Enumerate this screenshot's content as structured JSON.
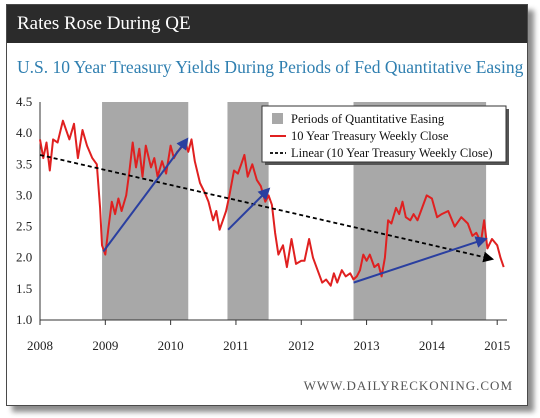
{
  "header": {
    "title": "Rates Rose During QE"
  },
  "source": "WWW.DAILYRECKONING.COM",
  "colors": {
    "header_bg": "#2b2b2b",
    "subtitle": "#2f7fb0",
    "qe_band": "#a8a8a8",
    "yield_line": "#e02020",
    "trend_line": "#000000",
    "arrows": "#2a3fa0"
  },
  "chart_data": {
    "type": "line",
    "title": "U.S. 10 Year Treasury Yields During Periods of Fed Quantitative Easing",
    "xlabel": "",
    "ylabel": "",
    "xlim": [
      2008,
      2015.15
    ],
    "ylim": [
      1.0,
      4.5
    ],
    "x_ticks": [
      "2008",
      "2009",
      "2010",
      "2011",
      "2012",
      "2013",
      "2014",
      "2015"
    ],
    "y_ticks": [
      "1.0",
      "1.5",
      "2.0",
      "2.5",
      "3.0",
      "3.5",
      "4.0",
      "4.5"
    ],
    "grid": false,
    "legend": {
      "placement": "top-right",
      "entries": [
        "Periods of Quantitative Easing",
        "10 Year Treasury Weekly Close",
        "Linear (10 Year Treasury Weekly Close)"
      ]
    },
    "qe_periods": [
      {
        "start": 2008.95,
        "end": 2010.27
      },
      {
        "start": 2010.87,
        "end": 2011.5
      },
      {
        "start": 2012.8,
        "end": 2014.83
      }
    ],
    "series": [
      {
        "name": "10 Year Treasury Weekly Close",
        "x": [
          2008.0,
          2008.05,
          2008.1,
          2008.15,
          2008.2,
          2008.27,
          2008.35,
          2008.45,
          2008.52,
          2008.58,
          2008.65,
          2008.72,
          2008.8,
          2008.87,
          2008.92,
          2008.95,
          2009.0,
          2009.05,
          2009.1,
          2009.15,
          2009.2,
          2009.25,
          2009.32,
          2009.37,
          2009.42,
          2009.47,
          2009.52,
          2009.57,
          2009.62,
          2009.7,
          2009.75,
          2009.8,
          2009.87,
          2009.93,
          2010.0,
          2010.05,
          2010.1,
          2010.15,
          2010.22,
          2010.27,
          2010.32,
          2010.37,
          2010.45,
          2010.52,
          2010.58,
          2010.65,
          2010.7,
          2010.75,
          2010.8,
          2010.85,
          2010.9,
          2010.97,
          2011.03,
          2011.08,
          2011.13,
          2011.18,
          2011.25,
          2011.32,
          2011.38,
          2011.45,
          2011.5,
          2011.55,
          2011.6,
          2011.65,
          2011.72,
          2011.78,
          2011.85,
          2011.92,
          2012.0,
          2012.05,
          2012.12,
          2012.18,
          2012.25,
          2012.32,
          2012.38,
          2012.45,
          2012.5,
          2012.55,
          2012.62,
          2012.68,
          2012.75,
          2012.8,
          2012.85,
          2012.9,
          2012.95,
          2013.0,
          2013.05,
          2013.12,
          2013.18,
          2013.23,
          2013.28,
          2013.33,
          2013.38,
          2013.45,
          2013.5,
          2013.55,
          2013.6,
          2013.67,
          2013.72,
          2013.78,
          2013.85,
          2013.92,
          2014.0,
          2014.08,
          2014.15,
          2014.25,
          2014.35,
          2014.45,
          2014.55,
          2014.62,
          2014.68,
          2014.75,
          2014.8,
          2014.85,
          2014.92,
          2015.0,
          2015.05,
          2015.1
        ],
        "values": [
          3.9,
          3.6,
          3.85,
          3.4,
          3.9,
          3.85,
          4.2,
          3.9,
          4.15,
          3.6,
          4.05,
          3.8,
          3.6,
          3.5,
          2.8,
          2.2,
          2.05,
          2.5,
          2.9,
          2.7,
          2.95,
          2.75,
          3.0,
          3.4,
          3.85,
          3.45,
          3.75,
          3.3,
          3.8,
          3.45,
          3.6,
          3.3,
          3.55,
          3.35,
          3.8,
          3.6,
          3.7,
          3.75,
          3.85,
          3.7,
          3.9,
          3.55,
          3.2,
          3.05,
          2.9,
          2.6,
          2.75,
          2.45,
          2.6,
          2.75,
          3.0,
          3.4,
          3.35,
          3.5,
          3.65,
          3.3,
          3.5,
          3.25,
          3.15,
          2.9,
          3.0,
          2.85,
          2.4,
          2.05,
          2.2,
          1.85,
          2.3,
          1.9,
          1.95,
          1.95,
          2.3,
          2.0,
          1.8,
          1.6,
          1.65,
          1.55,
          1.75,
          1.6,
          1.8,
          1.7,
          1.75,
          1.65,
          1.7,
          1.8,
          2.05,
          1.95,
          2.05,
          1.85,
          1.9,
          1.7,
          2.0,
          2.6,
          2.55,
          2.8,
          2.7,
          2.9,
          2.65,
          2.6,
          2.7,
          2.6,
          2.8,
          3.0,
          2.95,
          2.65,
          2.7,
          2.75,
          2.5,
          2.65,
          2.55,
          2.35,
          2.4,
          2.25,
          2.6,
          2.15,
          2.3,
          2.2,
          2.0,
          1.85
        ]
      }
    ],
    "trend_line": {
      "name": "Linear (10 Year Treasury Weekly Close)",
      "x": [
        2008.0,
        2014.92
      ],
      "values": [
        3.65,
        1.98
      ]
    },
    "arrows": [
      {
        "from": [
          2008.97,
          2.1
        ],
        "to": [
          2010.25,
          3.9
        ]
      },
      {
        "from": [
          2010.88,
          2.45
        ],
        "to": [
          2011.5,
          3.1
        ]
      },
      {
        "from": [
          2012.8,
          1.6
        ],
        "to": [
          2014.82,
          2.3
        ]
      }
    ]
  }
}
